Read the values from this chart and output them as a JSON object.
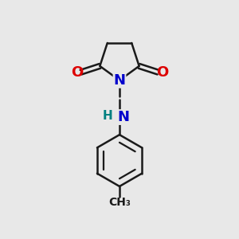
{
  "background_color": "#e8e8e8",
  "bond_color": "#1a1a1a",
  "N_color": "#0000cc",
  "O_color": "#dd0000",
  "H_color": "#008080",
  "line_width": 1.8,
  "font_size_atom": 13,
  "font_size_small": 11,
  "canvas_xlim": [
    0,
    10
  ],
  "canvas_ylim": [
    0,
    10
  ]
}
